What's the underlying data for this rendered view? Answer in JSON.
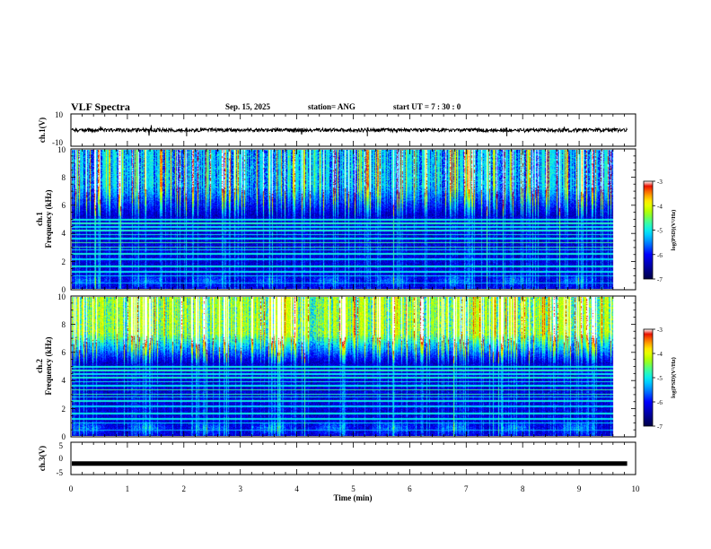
{
  "header": {
    "title": "VLF Spectra",
    "date": "Sep. 15, 2025",
    "station": "station= ANG",
    "start": "start  UT =   7 : 30 : 0"
  },
  "chart_data": [
    {
      "type": "line",
      "name": "ch1-waveform",
      "ylabel": "ch.1(V)",
      "ylim": [
        -10,
        10
      ],
      "ytick_labels": [
        "10",
        "-10"
      ],
      "baseline": 0,
      "x_extent_min": 9.85,
      "xlim": [
        0,
        10
      ]
    },
    {
      "type": "heatmap",
      "name": "ch1-spectrogram",
      "ylabel": "ch.1\nFrequency (kHz)",
      "ylim": [
        0,
        10
      ],
      "ytick_labels": [
        "0",
        "2",
        "4",
        "6",
        "8",
        "10"
      ],
      "xlim": [
        0,
        10
      ],
      "x_extent_min": 9.85,
      "colorbar": {
        "label": "log(PSD)(V²/Hz)",
        "range": [
          -7,
          -3
        ],
        "tick_labels": [
          "-3",
          "-4",
          "-5",
          "-6",
          "-7"
        ],
        "colors": [
          "#00008f",
          "#0000ff",
          "#00a0ff",
          "#00ffff",
          "#40ff90",
          "#a0ff00",
          "#ffff00",
          "#ff8000",
          "#ff0000",
          "#ffffff"
        ]
      },
      "lines_khz": [
        0.4,
        0.9,
        1.2,
        1.6,
        2.1,
        2.5,
        2.8,
        3.0,
        3.3,
        3.6,
        3.9,
        4.2,
        4.45,
        4.7,
        4.95
      ],
      "lines_strength": [
        0.35,
        0.5,
        0.55,
        0.6,
        0.45,
        0.6,
        0.55,
        0.75,
        0.8,
        0.55,
        0.6,
        0.65,
        0.55,
        0.7,
        0.6
      ],
      "high_band_level": 0.38
    },
    {
      "type": "heatmap",
      "name": "ch2-spectrogram",
      "ylabel": "ch.2\nFrequency (kHz)",
      "ylim": [
        0,
        10
      ],
      "ytick_labels": [
        "0",
        "2",
        "4",
        "6",
        "8",
        "10"
      ],
      "xlim": [
        0,
        10
      ],
      "x_extent_min": 9.85,
      "colorbar": {
        "label": "log(PSD)(V²/Hz)",
        "range": [
          -7,
          -3
        ],
        "tick_labels": [
          "-3",
          "-4",
          "-5",
          "-6",
          "-7"
        ],
        "colors": [
          "#00008f",
          "#0000ff",
          "#00a0ff",
          "#00ffff",
          "#40ff90",
          "#a0ff00",
          "#ffff00",
          "#ff8000",
          "#ff0000",
          "#ffffff"
        ]
      },
      "lines_khz": [
        0.4,
        0.9,
        1.2,
        1.6,
        2.1,
        2.5,
        2.8,
        3.0,
        3.3,
        3.6,
        3.9,
        4.2,
        4.45,
        4.7,
        4.95
      ],
      "lines_strength": [
        0.35,
        0.5,
        0.55,
        0.6,
        0.45,
        0.6,
        0.55,
        0.75,
        0.8,
        0.55,
        0.6,
        0.65,
        0.55,
        0.7,
        0.6
      ],
      "high_band_level": 0.6
    },
    {
      "type": "line",
      "name": "ch3-waveform",
      "ylabel": "ch.3(V)",
      "ylim": [
        -5,
        5
      ],
      "ytick_labels": [
        "5",
        "0",
        "-5"
      ],
      "baseline": -1.6,
      "x_extent_min": 9.85,
      "xlim": [
        0,
        10
      ],
      "xlabel": "Time (min)",
      "xtick_labels": [
        "0",
        "1",
        "2",
        "3",
        "4",
        "5",
        "6",
        "7",
        "8",
        "9",
        "10"
      ]
    }
  ]
}
